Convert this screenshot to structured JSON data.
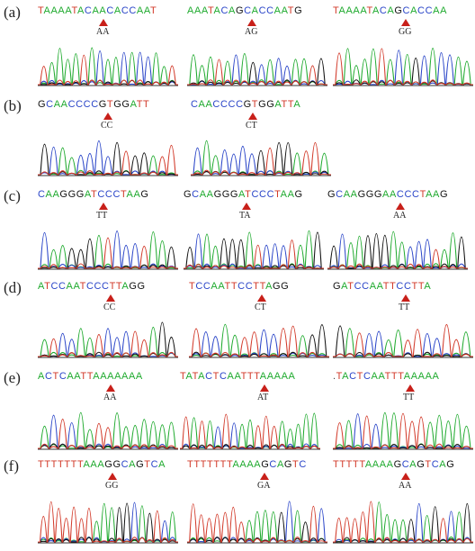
{
  "colors": {
    "A": "#1faa2e",
    "C": "#2a45c8",
    "G": "#111111",
    "T": "#d23a2a",
    "marker": "#c8201a"
  },
  "rows": [
    {
      "label": "(a)",
      "panels": [
        {
          "seq": "TAAAATACAACACCAAT",
          "genotype": "AA"
        },
        {
          "seq": "AAATACAGCACCAATG",
          "genotype": "AG"
        },
        {
          "seq": "TAAAATACAGCACCAA",
          "genotype": "GG"
        }
      ]
    },
    {
      "label": "(b)",
      "panels": [
        {
          "seq": "GCAACCCCGTGGATT",
          "genotype": "CC"
        },
        {
          "seq": "CAACCCCGTGGATTA",
          "genotype": "CT"
        }
      ]
    },
    {
      "label": "(c)",
      "panels": [
        {
          "seq": "CAAGGGATCCCTAAG",
          "genotype": "TT"
        },
        {
          "seq": "GCAAGGGATCCCTAAG",
          "genotype": "TA"
        },
        {
          "seq": "GCAAGGGAACCCTAAG",
          "genotype": "AA"
        }
      ]
    },
    {
      "label": "(d)",
      "panels": [
        {
          "seq": "ATCCAATCCCTTAGG",
          "genotype": "CC"
        },
        {
          "seq": "TCCAATTCCTTAGG",
          "genotype": "CT"
        },
        {
          "seq": "GATCCAATTCCTTA",
          "genotype": "TT"
        }
      ]
    },
    {
      "label": "(e)",
      "panels": [
        {
          "seq": "ACTCAATTAAAAAAA",
          "genotype": "AA"
        },
        {
          "seq": "TATACTCAATTTAAAAA",
          "genotype": "AT"
        },
        {
          "seq": ".TACTCAATTTAAAAA",
          "genotype": "TT"
        }
      ]
    },
    {
      "label": "(f)",
      "panels": [
        {
          "seq": "TTTTTTTAAAGGCAGTCA",
          "genotype": "GG"
        },
        {
          "seq": "TTTTTTTAAAAGCAGTC",
          "genotype": "GA"
        },
        {
          "seq": "TTTTTAAAAGCAGTCAG",
          "genotype": "AA"
        }
      ]
    }
  ]
}
